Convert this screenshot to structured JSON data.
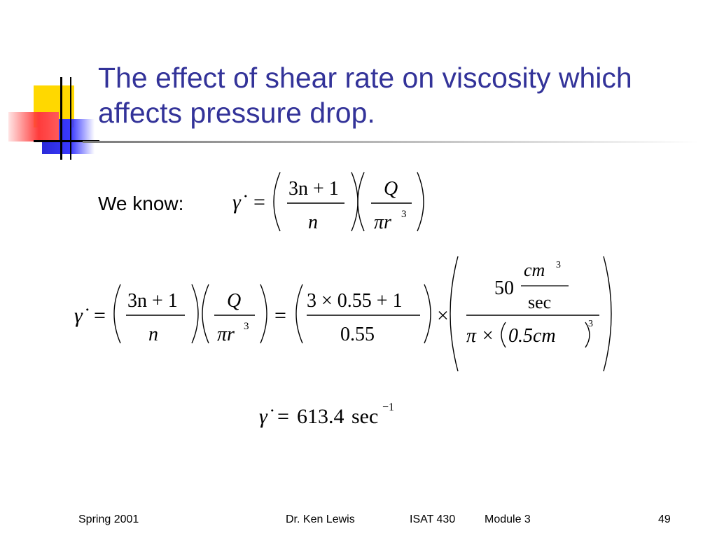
{
  "slide": {
    "title": "The effect of shear rate on viscosity which\naffects pressure drop.",
    "intro_label": "We know:"
  },
  "equations": {
    "gamma_dot": "γ̇",
    "equals": "=",
    "times": "×",
    "n_expr": "3n + 1",
    "n_den": "n",
    "Q": "Q",
    "pi_r": "πr",
    "exp3": "3",
    "num_expr": "3 × 0.55 + 1",
    "den_value": "0.55",
    "fifty": "50",
    "cm": "cm",
    "sec": "sec",
    "pi_times": "π ×",
    "half_cm": "0.5cm",
    "result_value": "613.4",
    "result_unit": "sec",
    "result_exp": "−1"
  },
  "footer": {
    "term": "Spring 2001",
    "author": "Dr. Ken Lewis",
    "course": "ISAT 430",
    "module": "Module 3",
    "page": "49"
  },
  "colors": {
    "title": "#333399",
    "logo_yellow": "#ffd800",
    "logo_blue": "#3a3aff",
    "logo_red": "#ff3b3b"
  }
}
